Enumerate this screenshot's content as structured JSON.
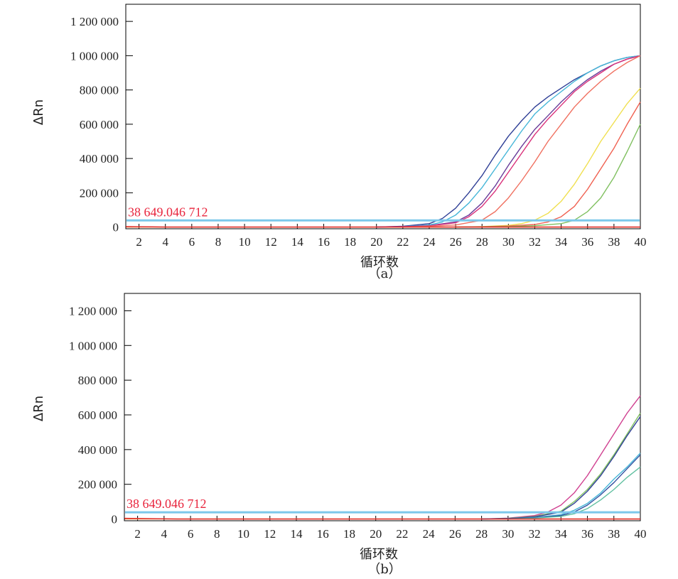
{
  "chart_data": [
    {
      "type": "line",
      "panel_label": "（a）",
      "xlabel": "循环数",
      "ylabel": "ΔRn",
      "xlim": [
        1,
        40
      ],
      "ylim": [
        -10000,
        1300000
      ],
      "x_ticks": [
        2,
        4,
        6,
        8,
        10,
        12,
        14,
        16,
        18,
        20,
        22,
        24,
        26,
        28,
        30,
        32,
        34,
        36,
        38,
        40
      ],
      "y_ticks": [
        0,
        200000,
        400000,
        600000,
        800000,
        1000000,
        1200000
      ],
      "y_tick_labels": [
        "0",
        "200 000",
        "400 000",
        "600 000",
        "800 000",
        "1 000 000",
        "1 200 000"
      ],
      "threshold": {
        "value": 38649.046712,
        "label": "38 649.046 712",
        "line_color": "#7cc8ea",
        "label_color": "#e8243c"
      },
      "baseline_color": "#f4a460",
      "series": [
        {
          "color": "#2f3f96",
          "x": [
            20,
            22,
            24,
            25,
            26,
            27,
            28,
            29,
            30,
            31,
            32,
            33,
            34,
            35,
            36,
            37,
            38,
            39,
            40
          ],
          "y": [
            0,
            5000,
            20000,
            50000,
            110000,
            200000,
            300000,
            420000,
            530000,
            620000,
            700000,
            760000,
            810000,
            860000,
            900000,
            940000,
            970000,
            990000,
            1000000
          ]
        },
        {
          "color": "#45b6d8",
          "x": [
            20,
            22,
            24,
            25,
            26,
            27,
            28,
            29,
            30,
            31,
            32,
            33,
            34,
            35,
            36,
            37,
            38,
            39,
            40
          ],
          "y": [
            0,
            3000,
            12000,
            30000,
            70000,
            140000,
            230000,
            340000,
            450000,
            560000,
            660000,
            730000,
            790000,
            850000,
            900000,
            940000,
            970000,
            990000,
            1000000
          ]
        },
        {
          "color": "#6a3d9a",
          "x": [
            20,
            22,
            24,
            26,
            27,
            28,
            29,
            30,
            31,
            32,
            33,
            34,
            35,
            36,
            37,
            38,
            39,
            40
          ],
          "y": [
            0,
            2000,
            8000,
            30000,
            70000,
            140000,
            240000,
            360000,
            470000,
            570000,
            650000,
            730000,
            800000,
            860000,
            910000,
            950000,
            980000,
            1000000
          ]
        },
        {
          "color": "#d9307a",
          "x": [
            20,
            22,
            24,
            26,
            27,
            28,
            29,
            30,
            31,
            32,
            33,
            34,
            35,
            36,
            37,
            38,
            39,
            40
          ],
          "y": [
            0,
            2000,
            7000,
            25000,
            60000,
            120000,
            210000,
            320000,
            430000,
            540000,
            630000,
            710000,
            790000,
            850000,
            900000,
            950000,
            980000,
            1000000
          ]
        },
        {
          "color": "#f07060",
          "x": [
            22,
            24,
            26,
            28,
            29,
            30,
            31,
            32,
            33,
            34,
            35,
            36,
            37,
            38,
            39,
            40
          ],
          "y": [
            0,
            5000,
            12000,
            40000,
            90000,
            170000,
            270000,
            380000,
            500000,
            600000,
            700000,
            780000,
            850000,
            910000,
            960000,
            1000000
          ]
        },
        {
          "color": "#f0e050",
          "x": [
            26,
            28,
            30,
            31,
            32,
            33,
            34,
            35,
            36,
            37,
            38,
            39,
            40
          ],
          "y": [
            0,
            3000,
            10000,
            20000,
            40000,
            80000,
            150000,
            250000,
            370000,
            500000,
            610000,
            720000,
            810000
          ]
        },
        {
          "color": "#f06050",
          "x": [
            26,
            28,
            30,
            32,
            33,
            34,
            35,
            36,
            37,
            38,
            39,
            40
          ],
          "y": [
            0,
            2000,
            6000,
            15000,
            30000,
            60000,
            120000,
            220000,
            340000,
            460000,
            600000,
            730000
          ]
        },
        {
          "color": "#80c060",
          "x": [
            26,
            28,
            30,
            32,
            34,
            35,
            36,
            37,
            38,
            39,
            40
          ],
          "y": [
            0,
            1000,
            3000,
            8000,
            20000,
            40000,
            90000,
            170000,
            290000,
            440000,
            600000
          ]
        },
        {
          "color": "#e02020",
          "x": [
            1,
            2,
            3,
            4,
            6,
            10,
            20,
            30,
            40
          ],
          "y": [
            3000,
            1500,
            1000,
            0,
            0,
            0,
            0,
            0,
            0
          ]
        }
      ]
    },
    {
      "type": "line",
      "panel_label": "（b）",
      "xlabel": "循环数",
      "ylabel": "ΔRn",
      "xlim": [
        1,
        40
      ],
      "ylim": [
        -10000,
        1300000
      ],
      "x_ticks": [
        2,
        4,
        6,
        8,
        10,
        12,
        14,
        16,
        18,
        20,
        22,
        24,
        26,
        28,
        30,
        32,
        34,
        36,
        38,
        40
      ],
      "y_ticks": [
        0,
        200000,
        400000,
        600000,
        800000,
        1000000,
        1200000
      ],
      "y_tick_labels": [
        "0",
        "200 000",
        "400 000",
        "600 000",
        "800 000",
        "1 000 000",
        "1 200 000"
      ],
      "threshold": {
        "value": 38649.046712,
        "label": "38 649.046 712",
        "line_color": "#7cc8ea",
        "label_color": "#e8243c"
      },
      "baseline_color": "#f4a460",
      "series": [
        {
          "color": "#d04090",
          "x": [
            28,
            30,
            32,
            33,
            34,
            35,
            36,
            37,
            38,
            39,
            40
          ],
          "y": [
            0,
            5000,
            20000,
            40000,
            80000,
            150000,
            250000,
            370000,
            490000,
            610000,
            710000
          ]
        },
        {
          "color": "#80c060",
          "x": [
            28,
            30,
            32,
            34,
            35,
            36,
            37,
            38,
            39,
            40
          ],
          "y": [
            0,
            4000,
            15000,
            45000,
            100000,
            170000,
            260000,
            370000,
            490000,
            610000
          ]
        },
        {
          "color": "#2f3f96",
          "x": [
            28,
            30,
            32,
            34,
            35,
            36,
            37,
            38,
            39,
            40
          ],
          "y": [
            0,
            3000,
            12000,
            40000,
            90000,
            160000,
            250000,
            360000,
            480000,
            590000
          ]
        },
        {
          "color": "#45b6d8",
          "x": [
            28,
            30,
            32,
            34,
            35,
            36,
            37,
            38,
            39,
            40
          ],
          "y": [
            0,
            2000,
            8000,
            25000,
            50000,
            90000,
            150000,
            230000,
            300000,
            380000
          ]
        },
        {
          "color": "#3050a0",
          "x": [
            28,
            30,
            32,
            34,
            35,
            36,
            37,
            38,
            39,
            40
          ],
          "y": [
            0,
            2000,
            7000,
            20000,
            40000,
            80000,
            140000,
            210000,
            290000,
            370000
          ]
        },
        {
          "color": "#60c0a0",
          "x": [
            30,
            32,
            34,
            35,
            36,
            37,
            38,
            39,
            40
          ],
          "y": [
            0,
            5000,
            15000,
            30000,
            60000,
            110000,
            170000,
            240000,
            300000
          ]
        },
        {
          "color": "#e02020",
          "x": [
            1,
            2,
            3,
            4,
            5,
            6,
            10,
            20,
            30,
            40
          ],
          "y": [
            4000,
            3000,
            2000,
            1000,
            0,
            0,
            0,
            0,
            0,
            0
          ]
        }
      ]
    }
  ]
}
